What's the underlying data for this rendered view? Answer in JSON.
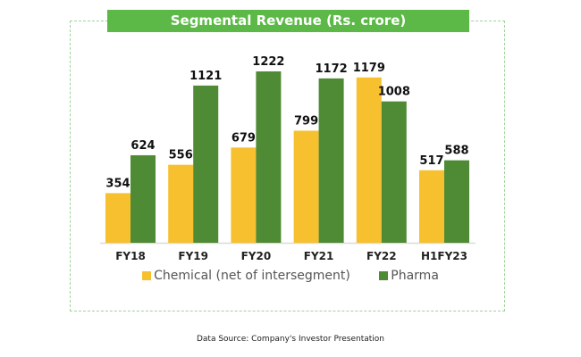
{
  "chart_data": {
    "type": "bar",
    "title": "Segmental Revenue (Rs. crore)",
    "categories": [
      "FY18",
      "FY19",
      "FY20",
      "FY21",
      "FY22",
      "H1FY23"
    ],
    "series": [
      {
        "name": "Chemical (net of intersegment)",
        "color": "#f6c02e",
        "values": [
          354,
          556,
          679,
          799,
          1179,
          517
        ]
      },
      {
        "name": "Pharma",
        "color": "#4f8a34",
        "values": [
          624,
          1121,
          1222,
          1172,
          1008,
          588
        ]
      }
    ],
    "ylim": [
      0,
      1222
    ],
    "grid": false,
    "legend": "bottom"
  },
  "source": "Data Source: Company's Investor Presentation",
  "colors": {
    "banner": "#5cb947",
    "border": "#9ed39a"
  }
}
